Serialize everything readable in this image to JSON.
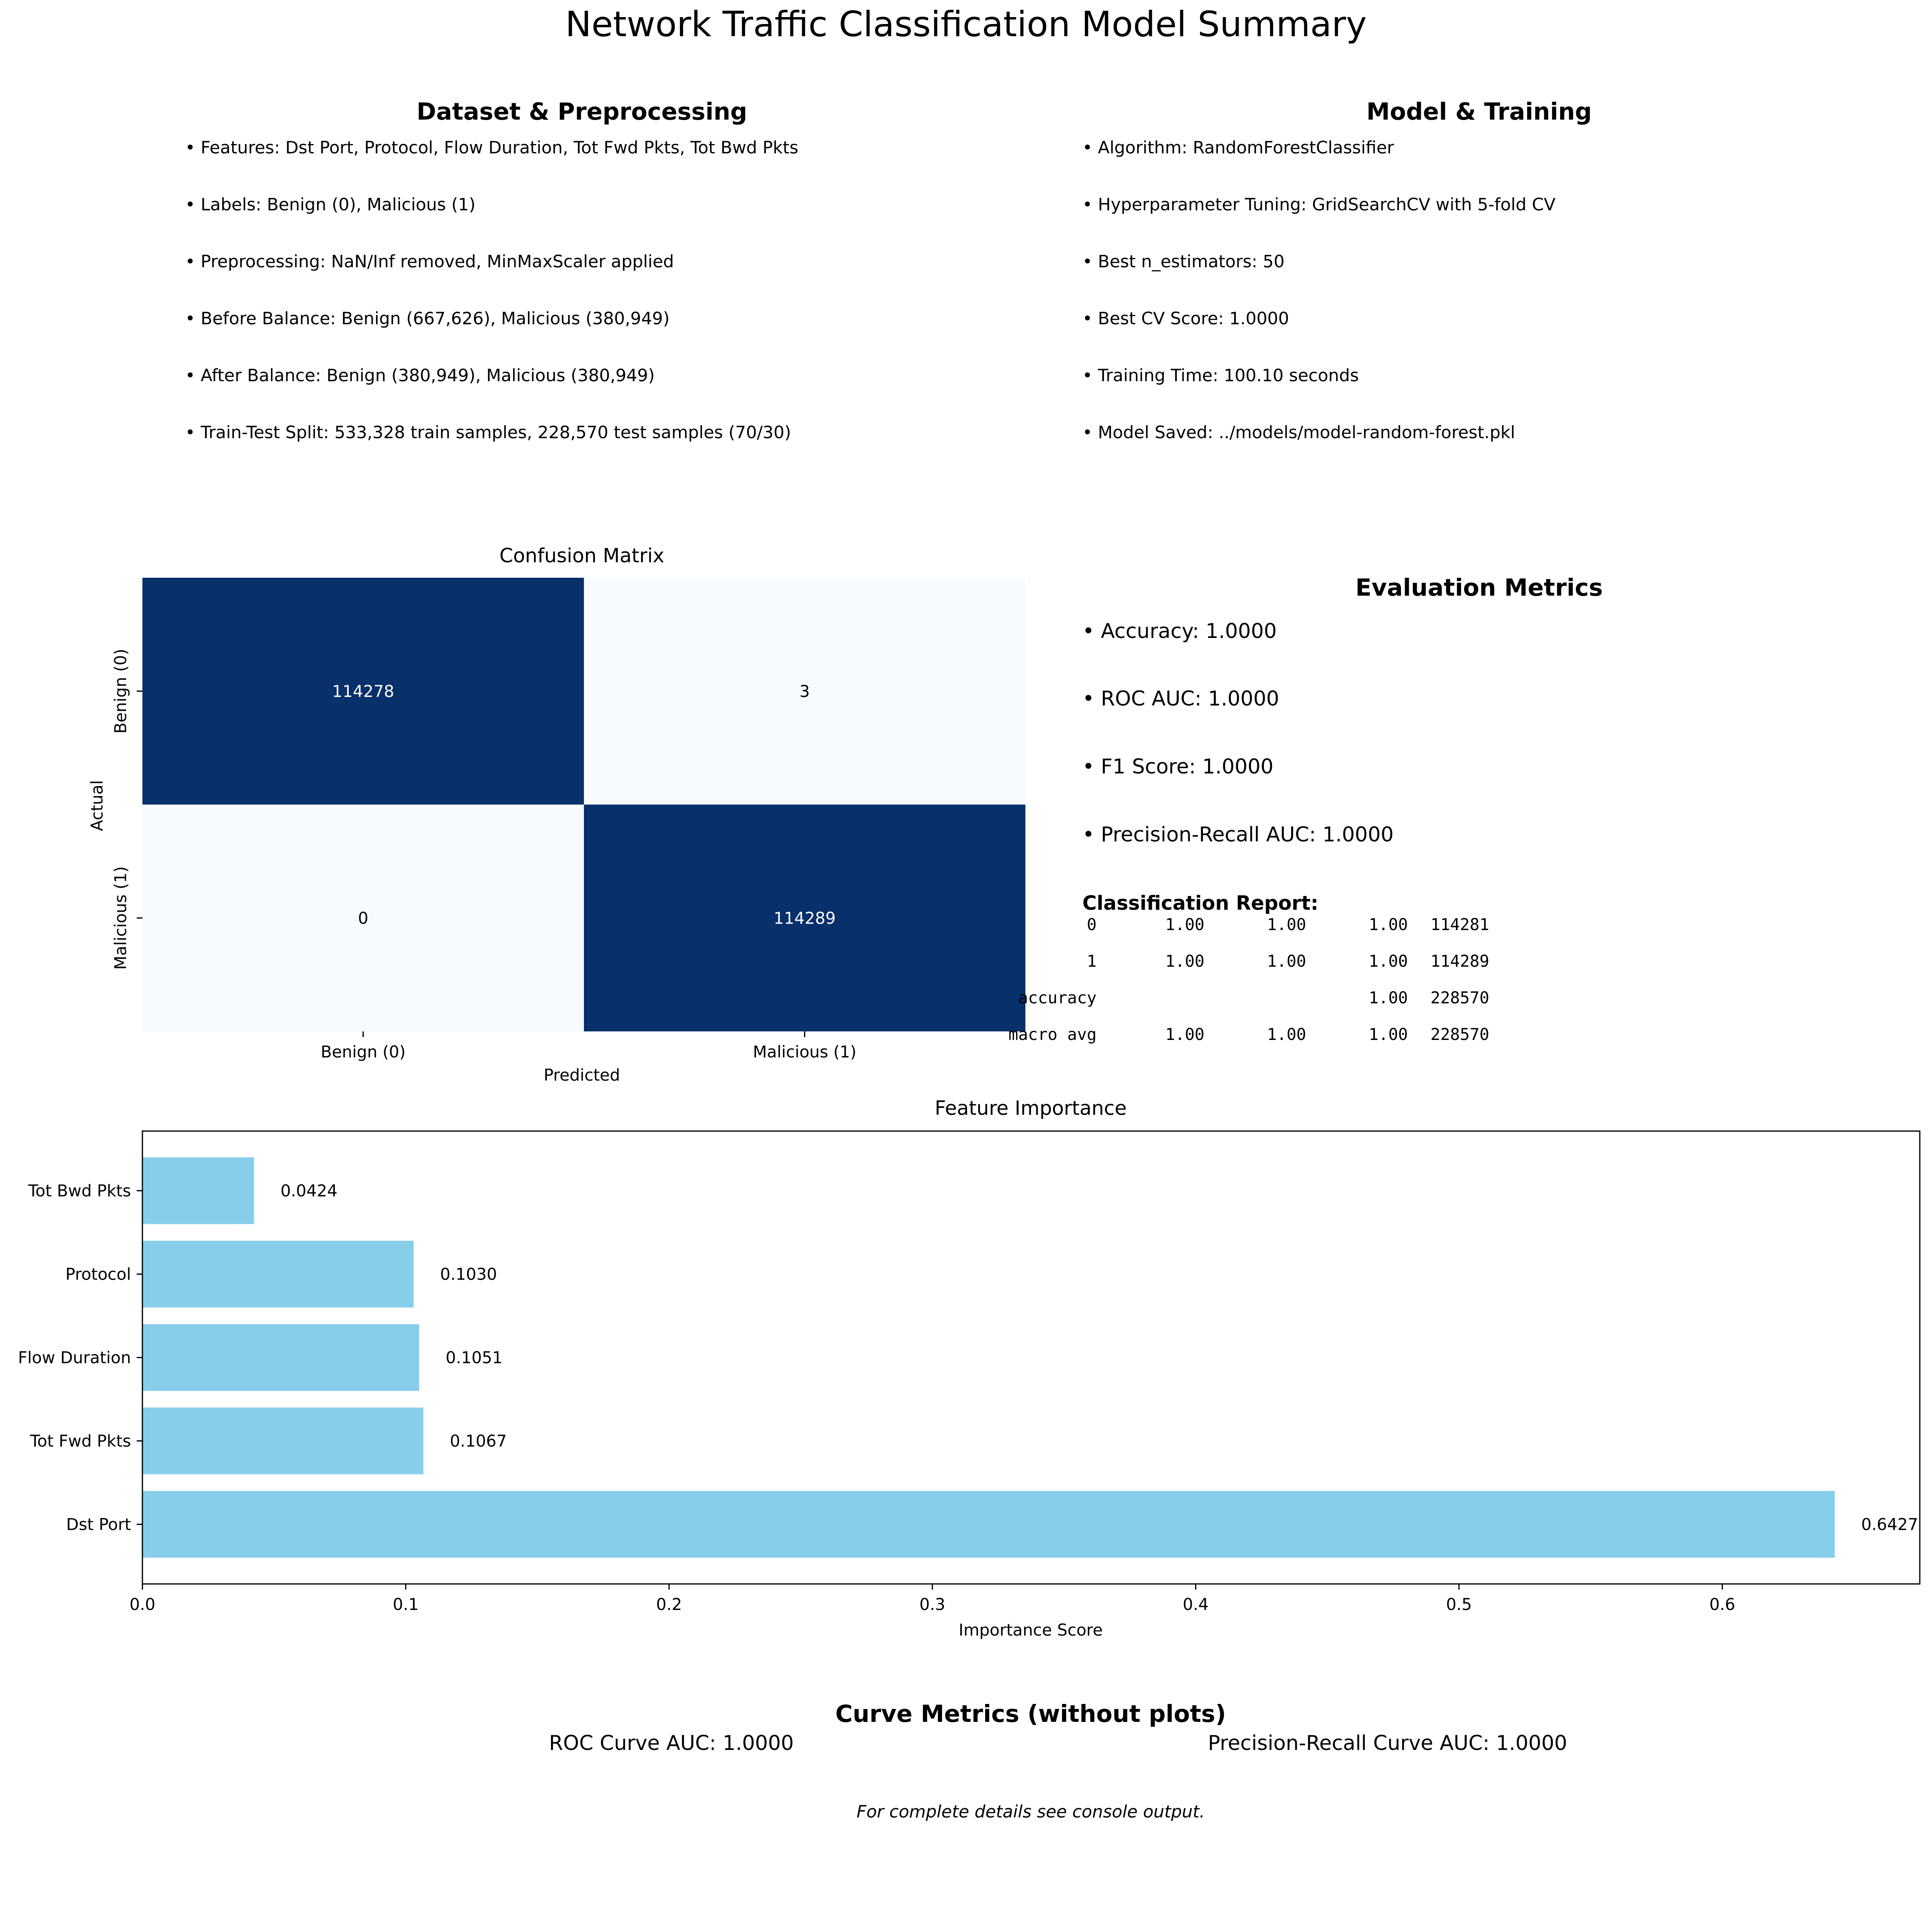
{
  "title": "Network Traffic Classification Model Summary",
  "dataset": {
    "heading": "Dataset & Preprocessing",
    "items": [
      "• Features: Dst Port, Protocol, Flow Duration, Tot Fwd Pkts, Tot Bwd Pkts",
      "• Labels: Benign (0), Malicious (1)",
      "• Preprocessing: NaN/Inf removed, MinMaxScaler applied",
      "• Before Balance: Benign (667,626), Malicious (380,949)",
      "• After Balance: Benign (380,949), Malicious (380,949)",
      "• Train-Test Split: 533,328 train samples, 228,570 test samples (70/30)"
    ]
  },
  "model": {
    "heading": "Model & Training",
    "items": [
      "• Algorithm: RandomForestClassifier",
      "• Hyperparameter Tuning: GridSearchCV with 5-fold CV",
      "• Best n_estimators: 50",
      "• Best CV Score: 1.0000",
      "• Training Time: 100.10 seconds",
      "• Model Saved: ../models/model-random-forest.pkl"
    ]
  },
  "evaluation": {
    "heading": "Evaluation Metrics",
    "items": [
      "• Accuracy: 1.0000",
      "• ROC AUC: 1.0000",
      "• F1 Score: 1.0000",
      "• Precision-Recall AUC: 1.0000"
    ],
    "report_heading": "Classification Report:",
    "report_rows": [
      [
        "0",
        "1.00",
        "1.00",
        "1.00",
        "114281"
      ],
      [
        "1",
        "1.00",
        "1.00",
        "1.00",
        "114289"
      ],
      [
        "accuracy",
        "",
        "",
        "1.00",
        "228570"
      ],
      [
        "macro avg",
        "1.00",
        "1.00",
        "1.00",
        "228570"
      ]
    ]
  },
  "curves": {
    "heading": "Curve Metrics (without plots)",
    "roc": "ROC Curve AUC: 1.0000",
    "pr": "Precision-Recall Curve AUC: 1.0000"
  },
  "footer": "For complete details see console output.",
  "colors": {
    "dark_cell": "#08306b",
    "light_cell": "#f7fbff",
    "bar": "#87ceeb"
  },
  "chart_data": [
    {
      "type": "heatmap",
      "title": "Confusion Matrix",
      "xlabel": "Predicted",
      "ylabel": "Actual",
      "x_categories": [
        "Benign (0)",
        "Malicious (1)"
      ],
      "y_categories": [
        "Benign (0)",
        "Malicious (1)"
      ],
      "values": [
        [
          114278,
          3
        ],
        [
          0,
          114289
        ]
      ],
      "colormap": "Blues",
      "colorbar": false
    },
    {
      "type": "bar",
      "orientation": "horizontal",
      "title": "Feature Importance",
      "xlabel": "Importance Score",
      "ylabel": "",
      "categories": [
        "Dst Port",
        "Tot Fwd Pkts",
        "Flow Duration",
        "Protocol",
        "Tot Bwd Pkts"
      ],
      "values": [
        0.6427,
        0.1067,
        0.1051,
        0.103,
        0.0424
      ],
      "value_labels": [
        "0.6427",
        "0.1067",
        "0.1051",
        "0.1030",
        "0.0424"
      ],
      "xlim": [
        0,
        0.675
      ],
      "xticks": [
        0.0,
        0.1,
        0.2,
        0.3,
        0.4,
        0.5,
        0.6
      ],
      "xtick_labels": [
        "0.0",
        "0.1",
        "0.2",
        "0.3",
        "0.4",
        "0.5",
        "0.6"
      ]
    }
  ]
}
